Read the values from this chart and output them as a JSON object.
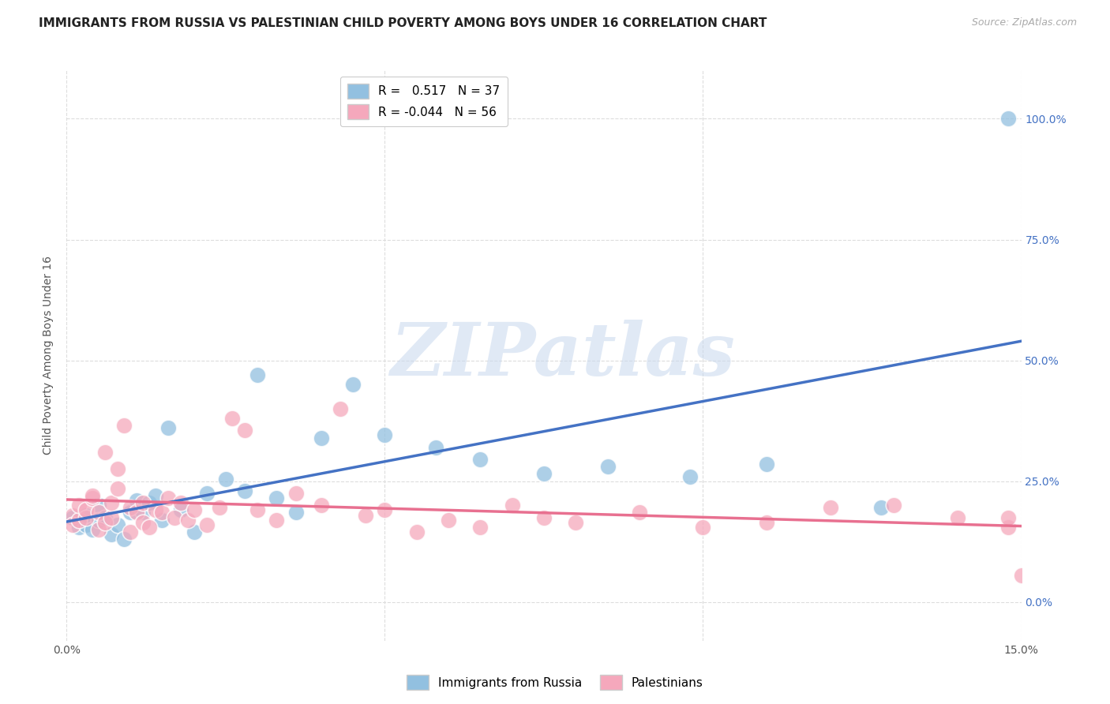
{
  "title": "IMMIGRANTS FROM RUSSIA VS PALESTINIAN CHILD POVERTY AMONG BOYS UNDER 16 CORRELATION CHART",
  "source": "Source: ZipAtlas.com",
  "xlabel_blue": "Immigrants from Russia",
  "xlabel_pink": "Palestinians",
  "ylabel": "Child Poverty Among Boys Under 16",
  "r_blue": 0.517,
  "n_blue": 37,
  "r_pink": -0.044,
  "n_pink": 56,
  "xlim": [
    0.0,
    0.15
  ],
  "ylim": [
    -0.08,
    1.1
  ],
  "xticks": [
    0.0,
    0.05,
    0.1,
    0.15
  ],
  "xticklabels": [
    "0.0%",
    "",
    "",
    "15.0%"
  ],
  "yticks": [
    0.0,
    0.25,
    0.5,
    0.75,
    1.0
  ],
  "yticklabels": [
    "0.0%",
    "25.0%",
    "50.0%",
    "75.0%",
    "100.0%"
  ],
  "blue_color": "#92c0e0",
  "pink_color": "#f5a8bc",
  "blue_line_color": "#4472c4",
  "pink_line_color": "#e87090",
  "watermark_text": "ZIPatlas",
  "blue_x": [
    0.001,
    0.002,
    0.003,
    0.003,
    0.004,
    0.005,
    0.005,
    0.006,
    0.007,
    0.008,
    0.009,
    0.01,
    0.011,
    0.012,
    0.013,
    0.014,
    0.015,
    0.016,
    0.018,
    0.02,
    0.022,
    0.025,
    0.028,
    0.03,
    0.033,
    0.036,
    0.04,
    0.045,
    0.05,
    0.058,
    0.065,
    0.075,
    0.085,
    0.098,
    0.11,
    0.128,
    0.148
  ],
  "blue_y": [
    0.175,
    0.155,
    0.16,
    0.18,
    0.15,
    0.2,
    0.17,
    0.175,
    0.14,
    0.16,
    0.13,
    0.185,
    0.21,
    0.185,
    0.205,
    0.22,
    0.17,
    0.36,
    0.19,
    0.145,
    0.225,
    0.255,
    0.23,
    0.47,
    0.215,
    0.185,
    0.34,
    0.45,
    0.345,
    0.32,
    0.295,
    0.265,
    0.28,
    0.26,
    0.285,
    0.195,
    1.0
  ],
  "pink_x": [
    0.001,
    0.001,
    0.002,
    0.002,
    0.003,
    0.003,
    0.004,
    0.004,
    0.005,
    0.005,
    0.006,
    0.006,
    0.007,
    0.007,
    0.008,
    0.008,
    0.009,
    0.01,
    0.01,
    0.011,
    0.012,
    0.012,
    0.013,
    0.014,
    0.015,
    0.016,
    0.017,
    0.018,
    0.019,
    0.02,
    0.022,
    0.024,
    0.026,
    0.028,
    0.03,
    0.033,
    0.036,
    0.04,
    0.043,
    0.047,
    0.05,
    0.055,
    0.06,
    0.065,
    0.07,
    0.075,
    0.08,
    0.09,
    0.1,
    0.11,
    0.12,
    0.13,
    0.14,
    0.148,
    0.148,
    0.15
  ],
  "pink_y": [
    0.18,
    0.16,
    0.17,
    0.2,
    0.175,
    0.19,
    0.215,
    0.22,
    0.15,
    0.185,
    0.165,
    0.31,
    0.175,
    0.205,
    0.275,
    0.235,
    0.365,
    0.145,
    0.195,
    0.185,
    0.205,
    0.165,
    0.155,
    0.19,
    0.185,
    0.215,
    0.175,
    0.205,
    0.17,
    0.19,
    0.16,
    0.195,
    0.38,
    0.355,
    0.19,
    0.17,
    0.225,
    0.2,
    0.4,
    0.18,
    0.19,
    0.145,
    0.17,
    0.155,
    0.2,
    0.175,
    0.165,
    0.185,
    0.155,
    0.165,
    0.195,
    0.2,
    0.175,
    0.155,
    0.175,
    0.055
  ],
  "background_color": "#ffffff",
  "grid_color": "#dddddd"
}
